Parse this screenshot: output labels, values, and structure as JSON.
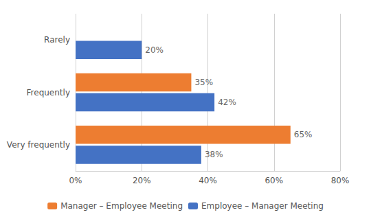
{
  "chart_data": {
    "type": "bar",
    "orientation": "horizontal",
    "categories": [
      "Very frequently",
      "Frequently",
      "Rarely"
    ],
    "series": [
      {
        "name": "Manager – Employee Meeting",
        "color": "#ED7D31",
        "values": [
          65,
          35,
          0
        ],
        "value_labels": [
          "65%",
          "35%",
          null
        ]
      },
      {
        "name": "Employee – Manager Meeting",
        "color": "#4472C4",
        "values": [
          38,
          42,
          20
        ],
        "value_labels": [
          "38%",
          "42%",
          "20%"
        ]
      }
    ],
    "xlim": [
      0,
      80
    ],
    "xticks": [
      {
        "value": 0,
        "label": "0%"
      },
      {
        "value": 20,
        "label": "20%"
      },
      {
        "value": 40,
        "label": "40%"
      },
      {
        "value": 60,
        "label": "60%"
      },
      {
        "value": 80,
        "label": "80%"
      }
    ],
    "grid": true,
    "legend": "bottom",
    "data_labels": true
  }
}
